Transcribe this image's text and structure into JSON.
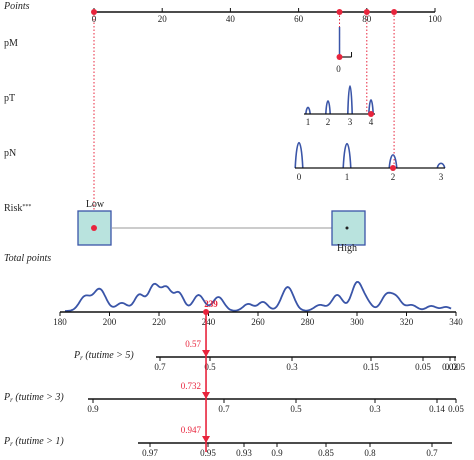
{
  "chart_data": {
    "type": "nomogram",
    "points": {
      "label": "Points",
      "ticks": [
        "0",
        "20",
        "40",
        "60",
        "80",
        "100"
      ],
      "values": [
        0,
        20,
        40,
        60,
        80,
        100
      ],
      "markers": [
        0,
        72,
        80,
        88
      ]
    },
    "pM": {
      "label": "pM",
      "ticks": [
        "0"
      ],
      "score": 72
    },
    "pT": {
      "label": "pT",
      "ticks": [
        "1",
        "2",
        "3",
        "4"
      ],
      "score": 80
    },
    "pN": {
      "label": "pN",
      "ticks": [
        "0",
        "1",
        "2",
        "3"
      ],
      "score": 88
    },
    "risk": {
      "label": "Risk",
      "label_sup": "***",
      "low": "Low",
      "high": "High",
      "score": 0
    },
    "total_points": {
      "label": "Total points",
      "ticks": [
        "180",
        "200",
        "220",
        "240",
        "260",
        "280",
        "300",
        "320",
        "340"
      ],
      "range": [
        180,
        340
      ],
      "value": 239,
      "value_label": "239"
    },
    "prob_rows": [
      {
        "label_prefix": "P",
        "label_sub": "r",
        "label_main": " (tutime > 5)",
        "ticks": [
          "0.7",
          "0.5",
          "0.3",
          "0.15",
          "0.05",
          "0.02",
          "0.005"
        ],
        "value": "0.57"
      },
      {
        "label_prefix": "P",
        "label_sub": "r",
        "label_main": " (tutime > 3)",
        "ticks": [
          "0.9",
          "0.7",
          "0.5",
          "0.3",
          "0.14",
          "0.05"
        ],
        "value": "0.732"
      },
      {
        "label_prefix": "P",
        "label_sub": "r",
        "label_main": " (tutime > 1)",
        "ticks": [
          "0.97",
          "0.95",
          "0.93",
          "0.9",
          "0.85",
          "0.8",
          "0.7"
        ],
        "value": "0.947"
      }
    ],
    "colors": {
      "axis": "#111111",
      "accent": "#e8243c",
      "density": "#3a55a8",
      "box_fill": "#b9e3de",
      "box_stroke": "#3a55a8"
    }
  }
}
